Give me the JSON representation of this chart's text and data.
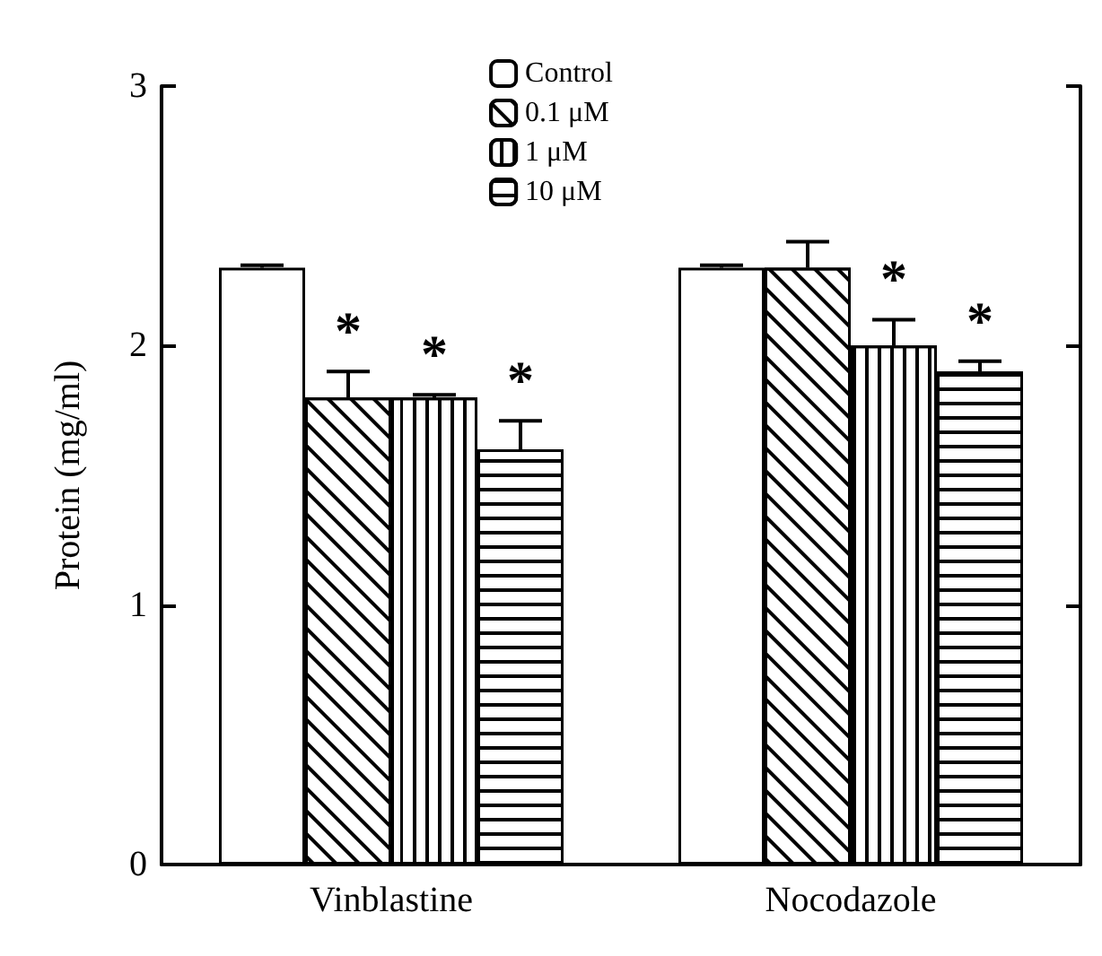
{
  "chart_data": {
    "type": "bar",
    "ylabel": "Protein (mg/ml)",
    "categories": [
      "Vinblastine",
      "Nocodazole"
    ],
    "series": [
      {
        "name": "Control",
        "color": "#ffffff",
        "values": [
          2.3,
          2.3
        ],
        "errors": [
          [
            2.3,
            2.31
          ],
          [
            2.3,
            2.31
          ]
        ]
      },
      {
        "name": "0.1 μM",
        "color": "#ffffff",
        "values": [
          1.8,
          2.3
        ],
        "errors": [
          [
            1.8,
            1.9
          ],
          [
            2.3,
            2.4
          ]
        ],
        "value_labels": [
          "*",
          null
        ]
      },
      {
        "name": "1 μM",
        "color": "#ffffff",
        "values": [
          1.8,
          2.0
        ],
        "errors": [
          [
            1.8,
            1.81
          ],
          [
            2.0,
            2.1
          ]
        ],
        "value_labels": [
          "*",
          "*"
        ]
      },
      {
        "name": "10 μM",
        "color": "#ffffff",
        "values": [
          1.6,
          1.9
        ],
        "errors": [
          [
            1.6,
            1.71
          ],
          [
            1.9,
            1.94
          ]
        ],
        "value_labels": [
          "*",
          "*"
        ]
      }
    ],
    "ylim": [
      0,
      3
    ],
    "yticks": [
      0,
      1,
      2,
      3
    ],
    "grid": false,
    "legend": "top"
  }
}
